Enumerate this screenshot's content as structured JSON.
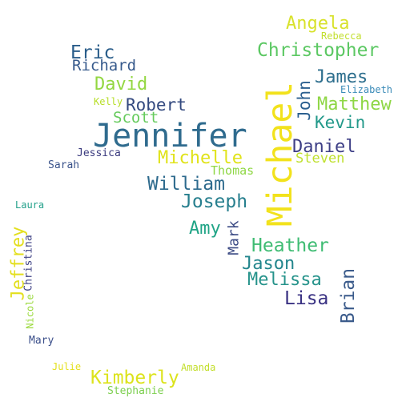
{
  "words": [
    {
      "text": "Jennifer",
      "color": "#2f6b8e"
    },
    {
      "text": "Michael",
      "color": "#f2e21c"
    },
    {
      "text": "Angela",
      "color": "#d8e22c"
    },
    {
      "text": "Rebecca",
      "color": "#c2df2e"
    },
    {
      "text": "Christopher",
      "color": "#5cc863"
    },
    {
      "text": "Eric",
      "color": "#2a5d8a"
    },
    {
      "text": "Richard",
      "color": "#375a8c"
    },
    {
      "text": "James",
      "color": "#2e6f8e"
    },
    {
      "text": "Elizabeth",
      "color": "#3b8bb8"
    },
    {
      "text": "David",
      "color": "#93d741"
    },
    {
      "text": "John",
      "color": "#2b5f8f"
    },
    {
      "text": "Matthew",
      "color": "#8ed645"
    },
    {
      "text": "Kelly",
      "color": "#b7de28"
    },
    {
      "text": "Robert",
      "color": "#33497f"
    },
    {
      "text": "Scott",
      "color": "#66cb5d"
    },
    {
      "text": "Kevin",
      "color": "#23998a"
    },
    {
      "text": "Daniel",
      "color": "#3e3f86"
    },
    {
      "text": "Michelle",
      "color": "#e0e31a"
    },
    {
      "text": "Steven",
      "color": "#bfe02d"
    },
    {
      "text": "Jessica",
      "color": "#3a3a7e"
    },
    {
      "text": "Thomas",
      "color": "#8fd744"
    },
    {
      "text": "Sarah",
      "color": "#3a538b"
    },
    {
      "text": "William",
      "color": "#2d6a8d"
    },
    {
      "text": "Joseph",
      "color": "#277f8e"
    },
    {
      "text": "Laura",
      "color": "#22a08a"
    },
    {
      "text": "Amy",
      "color": "#20a486"
    },
    {
      "text": "Mark",
      "color": "#3b4a84"
    },
    {
      "text": "Heather",
      "color": "#3fbc73"
    },
    {
      "text": "Jeffrey",
      "color": "#e3df1e"
    },
    {
      "text": "Christina",
      "color": "#414487"
    },
    {
      "text": "Jason",
      "color": "#23868d"
    },
    {
      "text": "Brian",
      "color": "#3b5b8b"
    },
    {
      "text": "Melissa",
      "color": "#26938b"
    },
    {
      "text": "Lisa",
      "color": "#3a3283"
    },
    {
      "text": "Nicole",
      "color": "#9ad93c"
    },
    {
      "text": "Mary",
      "color": "#3b4f8a"
    },
    {
      "text": "Julie",
      "color": "#e4e01e"
    },
    {
      "text": "Amanda",
      "color": "#c2de2a"
    },
    {
      "text": "Kimberly",
      "color": "#dce31c"
    },
    {
      "text": "Stephanie",
      "color": "#7ccf4f"
    }
  ]
}
